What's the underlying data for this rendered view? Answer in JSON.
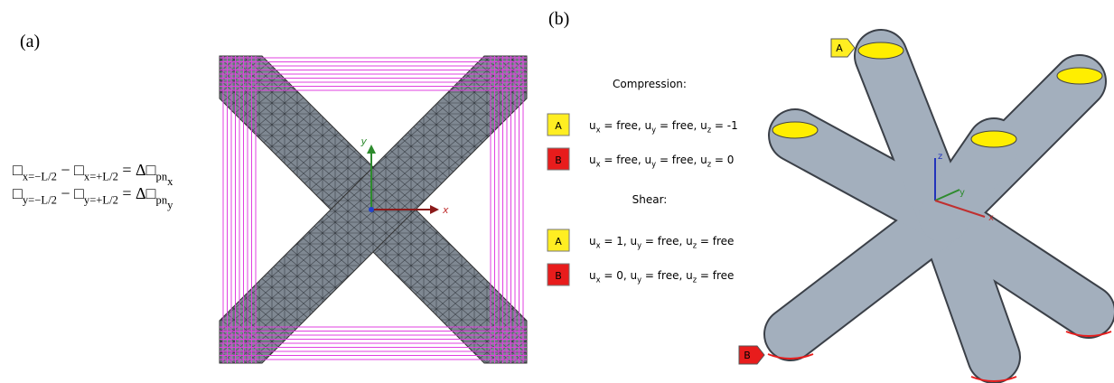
{
  "panel_a": {
    "label": "(a)",
    "equations": [
      {
        "parts": [
          {
            "t": "□"
          },
          {
            "s": "x=−L/2"
          },
          {
            "t": " − □"
          },
          {
            "s": "x=+L/2"
          },
          {
            "t": " =  Δ□"
          },
          {
            "s": "pn"
          },
          {
            "ss": "x"
          }
        ]
      },
      {
        "parts": [
          {
            "t": "□"
          },
          {
            "s": "y=−L/2"
          },
          {
            "t": " − □"
          },
          {
            "s": "y=+L/2"
          },
          {
            "t": " =  Δ□"
          },
          {
            "s": "pn"
          },
          {
            "ss": "y"
          }
        ]
      }
    ],
    "axes": {
      "x": "x",
      "y": "y"
    }
  },
  "panel_b": {
    "label": "(b)",
    "sections": [
      {
        "title": "Compression:",
        "rows": [
          {
            "tag": "A",
            "parts": [
              {
                "t": "u"
              },
              {
                "s": "x"
              },
              {
                "t": " = free, u"
              },
              {
                "s": "y"
              },
              {
                "t": " = free, u"
              },
              {
                "s": "z"
              },
              {
                "t": " = -1"
              }
            ]
          },
          {
            "tag": "B",
            "parts": [
              {
                "t": "u"
              },
              {
                "s": "x"
              },
              {
                "t": " = free, u"
              },
              {
                "s": "y"
              },
              {
                "t": " = free, u"
              },
              {
                "s": "z"
              },
              {
                "t": " = 0"
              }
            ]
          }
        ]
      },
      {
        "title": "Shear:",
        "rows": [
          {
            "tag": "A",
            "parts": [
              {
                "t": "u"
              },
              {
                "s": "x"
              },
              {
                "t": " = 1, u"
              },
              {
                "s": "y"
              },
              {
                "t": " = free, u"
              },
              {
                "s": "z"
              },
              {
                "t": " = free"
              }
            ]
          },
          {
            "tag": "B",
            "parts": [
              {
                "t": "u"
              },
              {
                "s": "x"
              },
              {
                "t": " = 0, u"
              },
              {
                "s": "y"
              },
              {
                "t": " = free, u"
              },
              {
                "s": "z"
              },
              {
                "t": " = free"
              }
            ]
          }
        ]
      }
    ],
    "axes": {
      "x": "x",
      "y": "y",
      "z": "z"
    },
    "tags": [
      "A",
      "B"
    ]
  }
}
